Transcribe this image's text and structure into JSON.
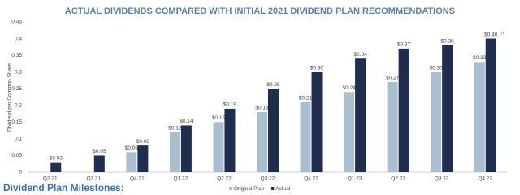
{
  "chart_data": {
    "type": "bar",
    "title": "ACTUAL DIVIDENDS COMPARED WITH INITIAL 2021 DIVIDEND PLAN RECOMMENDATIONS",
    "y_label": "Dividend per Common Share",
    "categories": [
      "Q2 21",
      "Q3 21",
      "Q4 21",
      "Q1 22",
      "Q2 22",
      "Q3 22",
      "Q4 22",
      "Q1 23",
      "Q2 23",
      "Q3 23",
      "Q4 23"
    ],
    "series": [
      {
        "name": "Original Plan",
        "color": "#a9bfcf",
        "values": [
          null,
          null,
          0.06,
          0.12,
          0.15,
          0.18,
          0.21,
          0.24,
          0.27,
          0.3,
          0.33
        ],
        "value_labels": [
          null,
          null,
          "$0.06",
          "$0.12",
          "$0.15",
          "$0.18",
          "$0.21",
          "$0.24",
          "$0.27",
          "$0.30",
          "$0.33"
        ]
      },
      {
        "name": "Actual",
        "color": "#1f2d4f",
        "values": [
          0.03,
          0.05,
          0.08,
          0.14,
          0.19,
          0.25,
          0.3,
          0.34,
          0.37,
          0.38,
          0.4
        ],
        "value_labels": [
          "$0.03",
          "$0.05",
          "$0.08",
          "$0.14",
          "$0.19",
          "$0.25",
          "$0.30",
          "$0.34",
          "$0.37",
          "$0.38",
          "$0.40"
        ]
      }
    ],
    "footnote_marker": "(1)",
    "ylim": [
      0,
      0.45
    ],
    "yticks": [
      0,
      0.05,
      0.1,
      0.15,
      0.2,
      0.25,
      0.3,
      0.35,
      0.4,
      0.45
    ],
    "grid": false,
    "legend": "bottom"
  },
  "section_heading": "Dividend Plan Milestones:"
}
